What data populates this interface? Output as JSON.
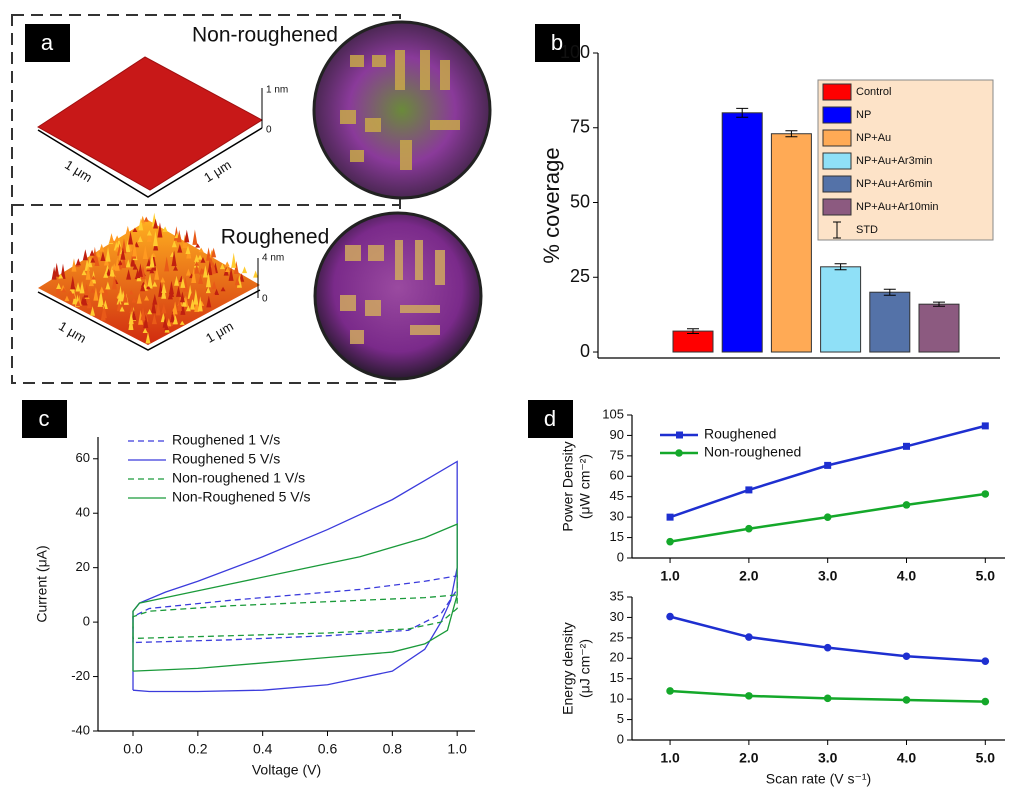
{
  "panel_a": {
    "label": "a",
    "top": {
      "title": "Non-roughened",
      "z_labels": [
        "1 nm",
        "0"
      ],
      "xy_labels": [
        "1 μm",
        "1 μm"
      ]
    },
    "bottom": {
      "title": "Roughened",
      "z_labels": [
        "4 nm",
        "0"
      ],
      "xy_labels": [
        "1 μm",
        "1 μm"
      ]
    }
  },
  "chart_data": [
    {
      "type": "bar",
      "panel_label": "b",
      "ylabel": [
        "% coverage"
      ],
      "categories": [
        "Control",
        "NP",
        "NP+Au",
        "NP+Au+Ar3min",
        "NP+Au+Ar6min",
        "NP+Au+Ar10min"
      ],
      "values": [
        7,
        80,
        73,
        28.5,
        20,
        16
      ],
      "errors": [
        0.8,
        1.5,
        1,
        1,
        1,
        0.7
      ],
      "colors": [
        "#ff0000",
        "#0000ff",
        "#ffaa55",
        "#8fe0f7",
        "#5472a8",
        "#8c5a80"
      ],
      "error_label": "STD",
      "ylim": [
        -2,
        100
      ],
      "yticks": [
        0,
        25,
        50,
        75,
        100
      ],
      "legend": "upper-right"
    },
    {
      "type": "line",
      "panel_label": "c",
      "xlabel": "Voltage (V)",
      "ylabel": [
        "Current (μA)"
      ],
      "series": [
        {
          "name": "Roughened 1 V/s",
          "color": "#3b3bdc",
          "linestyle": "dashed",
          "x": [
            0,
            0,
            0.05,
            0.3,
            0.5,
            0.7,
            0.9,
            1.0,
            1.0,
            0.95,
            0.85,
            0.6,
            0.3,
            0
          ],
          "values": [
            -7.5,
            2,
            5,
            8,
            10,
            12,
            15,
            17,
            12,
            3,
            -3,
            -5,
            -6.5,
            -7.5
          ]
        },
        {
          "name": "Roughened 5 V/s",
          "color": "#3b3bdc",
          "linestyle": "solid",
          "x": [
            0,
            0,
            0.02,
            0.1,
            0.2,
            0.4,
            0.6,
            0.8,
            0.9,
            1.0,
            1.0,
            0.98,
            0.95,
            0.9,
            0.8,
            0.6,
            0.4,
            0.2,
            0.05,
            0
          ],
          "values": [
            -25,
            4,
            7,
            11,
            15,
            24,
            34,
            45,
            52,
            59,
            20,
            8,
            0,
            -10,
            -18,
            -23,
            -25,
            -25.5,
            -25.5,
            -25
          ]
        },
        {
          "name": "Non-roughened 1 V/s",
          "color": "#1a9a3a",
          "linestyle": "dashed",
          "x": [
            0,
            0,
            0.05,
            0.3,
            0.5,
            0.7,
            0.9,
            1.0,
            1.0,
            0.95,
            0.85,
            0.6,
            0.3,
            0
          ],
          "values": [
            -6,
            2,
            4,
            6,
            7,
            8,
            9,
            10,
            5,
            0,
            -2.5,
            -4,
            -5,
            -6
          ]
        },
        {
          "name": "Non-Roughened 5 V/s",
          "color": "#1a9a3a",
          "linestyle": "solid",
          "x": [
            0,
            0,
            0.02,
            0.1,
            0.3,
            0.5,
            0.7,
            0.9,
            1.0,
            1.0,
            0.97,
            0.9,
            0.8,
            0.6,
            0.4,
            0.2,
            0
          ],
          "values": [
            -18,
            4,
            7,
            9,
            14,
            19,
            24,
            31,
            36,
            10,
            -3,
            -8,
            -11,
            -13,
            -15,
            -17,
            -18
          ]
        }
      ],
      "xlim": [
        -0.108,
        1.055
      ],
      "ylim": [
        -40,
        68
      ],
      "xticks": [
        {
          "value": 0,
          "label": "0.0"
        },
        0.2,
        0.4,
        0.6,
        0.8,
        {
          "value": 1,
          "label": "1.0"
        }
      ],
      "yticks": [
        -40,
        -20,
        0,
        20,
        40,
        60
      ],
      "legend": "upper-left"
    },
    {
      "type": "line",
      "panel_label": "d",
      "ylabel": [
        "Power Density",
        "(μW cm⁻²)"
      ],
      "x": [
        1,
        2,
        3,
        4,
        5
      ],
      "series": [
        {
          "name": "Roughened",
          "color": "#1e2fd0",
          "marker": "square",
          "values": [
            30,
            50,
            68,
            82,
            97
          ]
        },
        {
          "name": "Non-roughened",
          "color": "#14a82a",
          "marker": "circle",
          "values": [
            12,
            21.5,
            30,
            39,
            47
          ]
        }
      ],
      "xlim": [
        0.517,
        5.25
      ],
      "ylim": [
        0,
        105
      ],
      "xticks": [
        {
          "value": 1,
          "label": "1.0"
        },
        {
          "value": 2,
          "label": "2.0"
        },
        {
          "value": 3,
          "label": "3.0"
        },
        {
          "value": 4,
          "label": "4.0"
        },
        {
          "value": 5,
          "label": "5.0"
        }
      ],
      "yticks": [
        0,
        15,
        30,
        45,
        60,
        75,
        90,
        105
      ],
      "legend": "upper-left"
    },
    {
      "type": "line",
      "xlabel": "Scan rate (V s⁻¹)",
      "ylabel": [
        "Energy density",
        "(μJ cm⁻²)"
      ],
      "x": [
        1,
        2,
        3,
        4,
        5
      ],
      "series": [
        {
          "color": "#1e2fd0",
          "values": [
            30.2,
            25.2,
            22.6,
            20.5,
            19.3
          ]
        },
        {
          "color": "#14a82a",
          "values": [
            12,
            10.8,
            10.2,
            9.8,
            9.4
          ]
        }
      ],
      "xlim": [
        0.517,
        5.25
      ],
      "ylim": [
        0,
        35
      ],
      "xticks": [
        {
          "value": 1,
          "label": "1.0"
        },
        {
          "value": 2,
          "label": "2.0"
        },
        {
          "value": 3,
          "label": "3.0"
        },
        {
          "value": 4,
          "label": "4.0"
        },
        {
          "value": 5,
          "label": "5.0"
        }
      ],
      "yticks": [
        0,
        5,
        10,
        15,
        20,
        25,
        30,
        35
      ]
    }
  ]
}
